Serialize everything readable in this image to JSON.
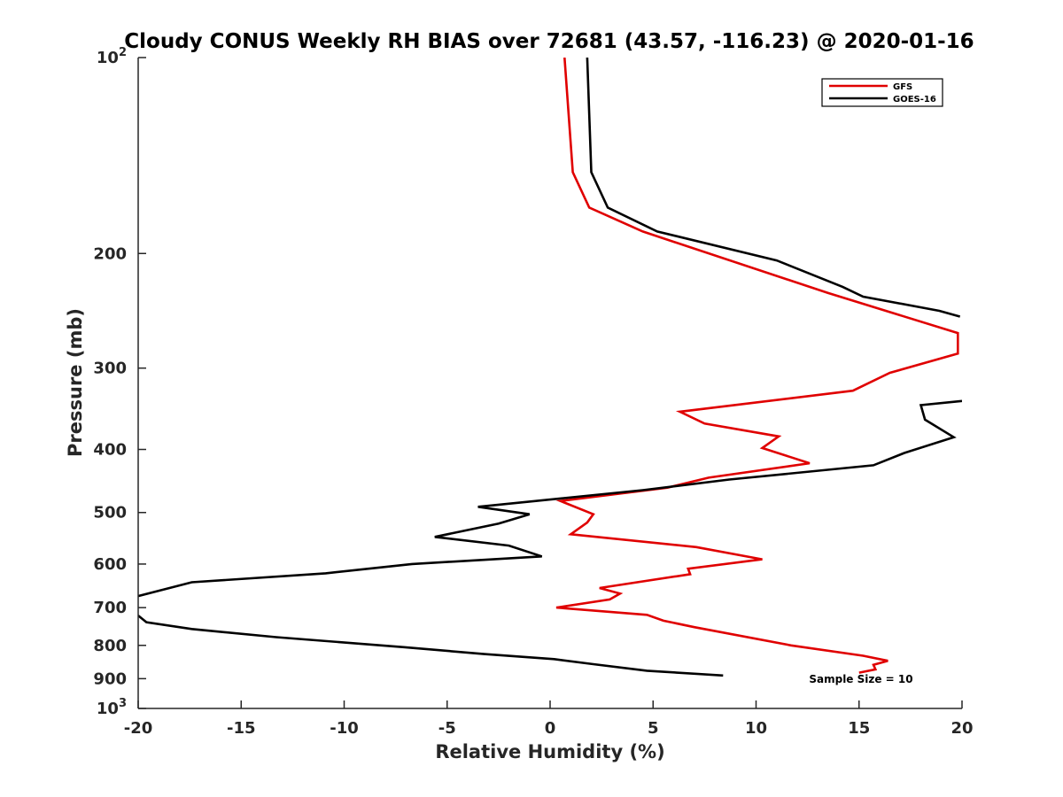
{
  "chart_data": {
    "type": "line",
    "title": "Cloudy CONUS Weekly RH BIAS over 72681 (43.57, -116.23) @ 2020-01-16",
    "xlabel": "Relative Humidity (%)",
    "ylabel": "Pressure (mb)",
    "xlim": [
      -20,
      20
    ],
    "ylim": [
      100,
      1000
    ],
    "y_scale": "log",
    "y_reversed": true,
    "grid": false,
    "legend_position": "top-right",
    "x_ticks": [
      {
        "value": -20,
        "label": "-20"
      },
      {
        "value": -15,
        "label": "-15"
      },
      {
        "value": -10,
        "label": "-10"
      },
      {
        "value": -5,
        "label": "-5"
      },
      {
        "value": 0,
        "label": "0"
      },
      {
        "value": 5,
        "label": "5"
      },
      {
        "value": 10,
        "label": "10"
      },
      {
        "value": 15,
        "label": "15"
      },
      {
        "value": 20,
        "label": "20"
      }
    ],
    "y_ticks": [
      {
        "value": 100,
        "base": "10",
        "exp": "2"
      },
      {
        "value": 200,
        "label": "200"
      },
      {
        "value": 300,
        "label": "300"
      },
      {
        "value": 400,
        "label": "400"
      },
      {
        "value": 500,
        "label": "500"
      },
      {
        "value": 600,
        "label": "600"
      },
      {
        "value": 700,
        "label": "700"
      },
      {
        "value": 800,
        "label": "800"
      },
      {
        "value": 900,
        "label": "900"
      },
      {
        "value": 1000,
        "base": "10",
        "exp": "3"
      }
    ],
    "series": [
      {
        "name": "GFS",
        "color": "#e00000",
        "points": [
          [
            0.7,
            100
          ],
          [
            1.1,
            150
          ],
          [
            1.9,
            170
          ],
          [
            4.5,
            185
          ],
          [
            13.5,
            230
          ],
          [
            19.8,
            265
          ],
          [
            19.8,
            285
          ],
          [
            16.5,
            305
          ],
          [
            14.7,
            325
          ],
          [
            6.3,
            350
          ],
          [
            7.5,
            365
          ],
          [
            11.1,
            382
          ],
          [
            10.3,
            398
          ],
          [
            12.6,
            420
          ],
          [
            7.7,
            442
          ],
          [
            5.7,
            458
          ],
          [
            0.5,
            480
          ],
          [
            2.1,
            503
          ],
          [
            1.8,
            518
          ],
          [
            1.0,
            540
          ],
          [
            7.1,
            565
          ],
          [
            10.3,
            590
          ],
          [
            6.7,
            610
          ],
          [
            6.8,
            622
          ],
          [
            2.4,
            653
          ],
          [
            3.4,
            666
          ],
          [
            2.9,
            680
          ],
          [
            0.3,
            700
          ],
          [
            4.7,
            718
          ],
          [
            5.5,
            733
          ],
          [
            7.0,
            750
          ],
          [
            11.7,
            800
          ],
          [
            15.2,
            830
          ],
          [
            16.4,
            845
          ],
          [
            15.7,
            857
          ],
          [
            15.8,
            871
          ],
          [
            15.0,
            881
          ]
        ]
      },
      {
        "name": "GOES-16",
        "color": "#000000",
        "points": [
          [
            1.8,
            100
          ],
          [
            2.0,
            150
          ],
          [
            2.8,
            170
          ],
          [
            5.2,
            185
          ],
          [
            11,
            205
          ],
          [
            14.2,
            225
          ],
          [
            15.2,
            233
          ],
          [
            18.9,
            245
          ],
          [
            19.9,
            250
          ],
          [
            null,
            262
          ],
          [
            20,
            337
          ],
          [
            18.0,
            342
          ],
          [
            18.2,
            360
          ],
          [
            19.6,
            383
          ],
          [
            17.2,
            405
          ],
          [
            15.7,
            423
          ],
          [
            8.7,
            445
          ],
          [
            4.5,
            462
          ],
          [
            -3.5,
            490
          ],
          [
            -1.0,
            503
          ],
          [
            -2.5,
            520
          ],
          [
            -5.6,
            545
          ],
          [
            -2.0,
            562
          ],
          [
            -0.4,
            584
          ],
          [
            -6.7,
            600
          ],
          [
            -10.9,
            620
          ],
          [
            -17.4,
            640
          ],
          [
            -20,
            672
          ],
          [
            null,
            690
          ],
          [
            -20,
            720
          ],
          [
            -19.6,
            737
          ],
          [
            -17.4,
            755
          ],
          [
            -13.3,
            777
          ],
          [
            -7.1,
            805
          ],
          [
            -3.2,
            825
          ],
          [
            0.2,
            840
          ],
          [
            2.1,
            855
          ],
          [
            4.7,
            875
          ],
          [
            8.4,
            890
          ]
        ]
      }
    ],
    "annotations": [
      "Sample Size = 10"
    ]
  }
}
